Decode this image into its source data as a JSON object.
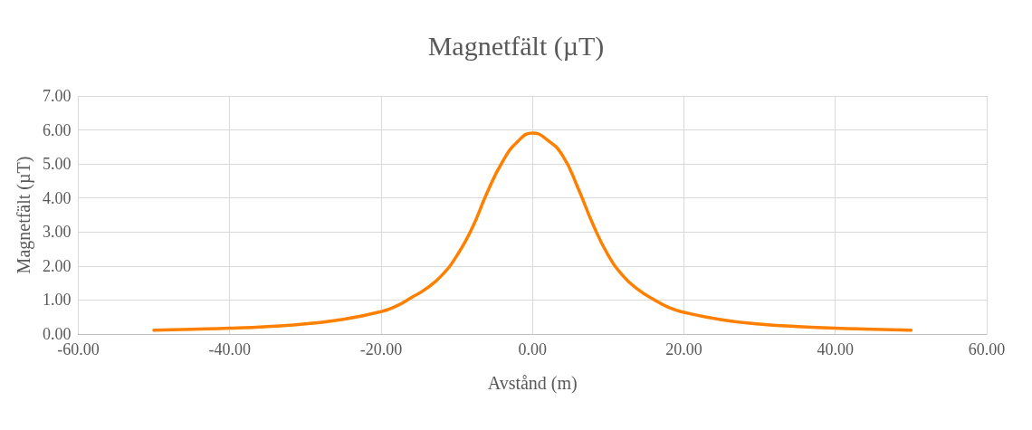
{
  "chart_data": {
    "type": "line",
    "title": "Magnetfält (µT)",
    "xlabel": "Avstånd (m)",
    "ylabel": "Magnetfält (µT)",
    "x": [
      -50,
      -45,
      -40,
      -35,
      -30,
      -25,
      -20,
      -18,
      -16,
      -14,
      -12,
      -10,
      -8,
      -6,
      -4,
      -2,
      0,
      2,
      4,
      6,
      8,
      10,
      12,
      14,
      16,
      18,
      20,
      25,
      30,
      35,
      40,
      45,
      50
    ],
    "series": [
      {
        "color": "#ff8000",
        "values": [
          0.11,
          0.14,
          0.17,
          0.22,
          0.3,
          0.43,
          0.66,
          0.82,
          1.07,
          1.34,
          1.72,
          2.3,
          3.1,
          4.15,
          5.05,
          5.65,
          5.91,
          5.7,
          5.24,
          4.3,
          3.22,
          2.32,
          1.7,
          1.3,
          1.02,
          0.78,
          0.64,
          0.42,
          0.29,
          0.22,
          0.17,
          0.14,
          0.11
        ]
      }
    ],
    "xlim": [
      -60,
      60
    ],
    "xticks": [
      {
        "value": -60,
        "label": "-60.00"
      },
      {
        "value": -40,
        "label": "-40.00"
      },
      {
        "value": -20,
        "label": "-20.00"
      },
      {
        "value": 0,
        "label": "0.00"
      },
      {
        "value": 20,
        "label": "20.00"
      },
      {
        "value": 40,
        "label": "40.00"
      },
      {
        "value": 60,
        "label": "60.00"
      }
    ],
    "ylim": [
      0,
      7
    ],
    "yticks": [
      {
        "value": 0,
        "label": "0.00"
      },
      {
        "value": 1,
        "label": "1.00"
      },
      {
        "value": 2,
        "label": "2.00"
      },
      {
        "value": 3,
        "label": "3.00"
      },
      {
        "value": 4,
        "label": "4.00"
      },
      {
        "value": 5,
        "label": "5.00"
      },
      {
        "value": 6,
        "label": "6.00"
      },
      {
        "value": 7,
        "label": "7.00"
      }
    ],
    "grid": true,
    "marker": "none",
    "line_style": "solid"
  }
}
